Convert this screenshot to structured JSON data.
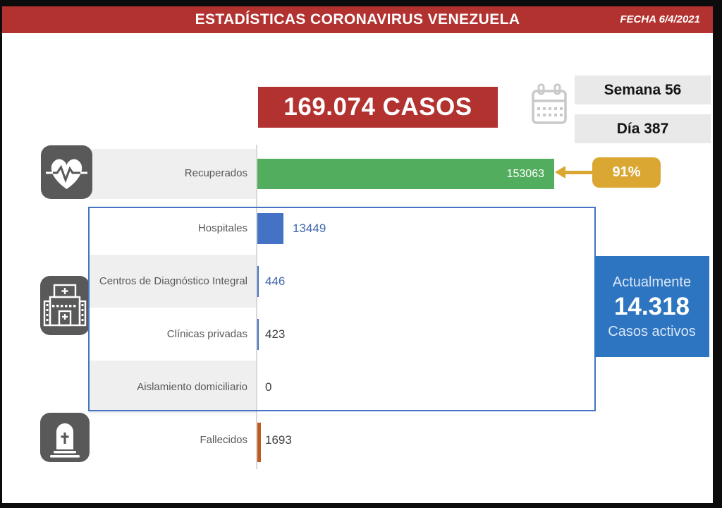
{
  "banner": {
    "title": "ESTADÍSTICAS CORONAVIRUS VENEZUELA",
    "date_label": "FECHA 6/4/2021"
  },
  "totals": {
    "cases_label": "169.074 CASOS",
    "week_label": "Semana 56",
    "day_label": "Día 387"
  },
  "chart_data": {
    "type": "bar",
    "orientation": "horizontal",
    "title": "169.074 CASOS",
    "categories": [
      "Recuperados",
      "Hospitales",
      "Centros de Diagnóstico Integral",
      "Clínicas privadas",
      "Aislamiento domiciliario",
      "Fallecidos"
    ],
    "values": [
      153063,
      13449,
      446,
      423,
      0,
      1693
    ],
    "value_labels": [
      "153063",
      "13449",
      "446",
      "423",
      "0",
      "1693"
    ],
    "recovered_pct": "91%",
    "xlim": [
      0,
      153063
    ],
    "grid": false,
    "legend": false,
    "bar_colors": [
      "#53ad5e",
      "#4472c4",
      "#4472c4",
      "#4472c4",
      "none",
      "#c05a1e"
    ],
    "icons": [
      "heart-pulse-icon",
      "hospital-icon",
      "hospital-icon",
      "hospital-icon",
      "hospital-icon",
      "tombstone-icon"
    ]
  },
  "active_box": {
    "line1": "Actualmente",
    "value": "14.318",
    "line2": "Casos activos"
  },
  "colors": {
    "banner_red": "#b23230",
    "recovered_green": "#53ad5e",
    "hospital_blue": "#4472c4",
    "deaths_orange": "#c05a1e",
    "pct_gold": "#dba733",
    "active_blue": "#2e75c1",
    "icon_gray": "#595959",
    "stripe_gray": "#efefef"
  }
}
